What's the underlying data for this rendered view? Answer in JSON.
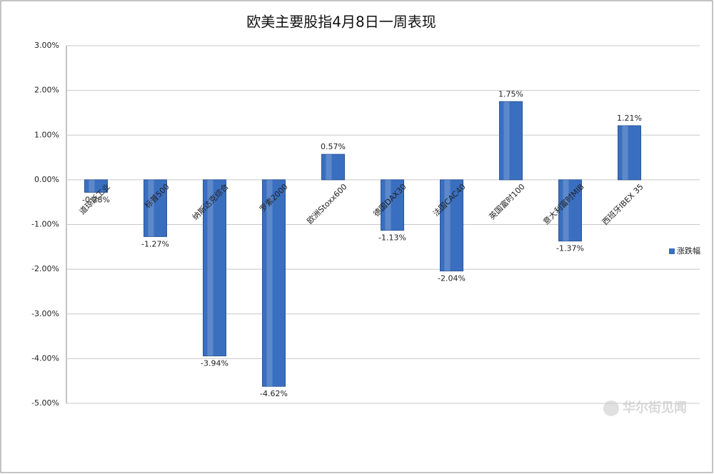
{
  "chart_data": {
    "type": "bar",
    "title": "欧美主要股指4月8日一周表现",
    "categories": [
      "道琼斯工业",
      "标普500",
      "纳斯达克综合",
      "罗素2000",
      "欧洲Stoxx600",
      "德国DAX30",
      "法国CAC40",
      "英国富时100",
      "意大利富时MIB",
      "西班牙IBEX 35"
    ],
    "series": [
      {
        "name": "涨跌幅",
        "color": "#3a6fc0",
        "values": [
          -0.28,
          -1.27,
          -3.94,
          -4.62,
          0.57,
          -1.13,
          -2.04,
          1.75,
          -1.37,
          1.21
        ],
        "value_labels": [
          "-0.28%",
          "-1.27%",
          "-3.94%",
          "-4.62%",
          "0.57%",
          "-1.13%",
          "-2.04%",
          "1.75%",
          "-1.37%",
          "1.21%"
        ]
      }
    ],
    "ylim": [
      -5,
      3
    ],
    "yticks": [
      {
        "value": -5,
        "label": "-5.00%"
      },
      {
        "value": -4,
        "label": "-4.00%"
      },
      {
        "value": -3,
        "label": "-3.00%"
      },
      {
        "value": -2,
        "label": "-2.00%"
      },
      {
        "value": -1,
        "label": "-1.00%"
      },
      {
        "value": 0,
        "label": "0.00%"
      },
      {
        "value": 1,
        "label": "1.00%"
      },
      {
        "value": 2,
        "label": "2.00%"
      },
      {
        "value": 3,
        "label": "3.00%"
      }
    ],
    "grid": true,
    "legend": "right",
    "watermark": "华尔街见闻"
  }
}
